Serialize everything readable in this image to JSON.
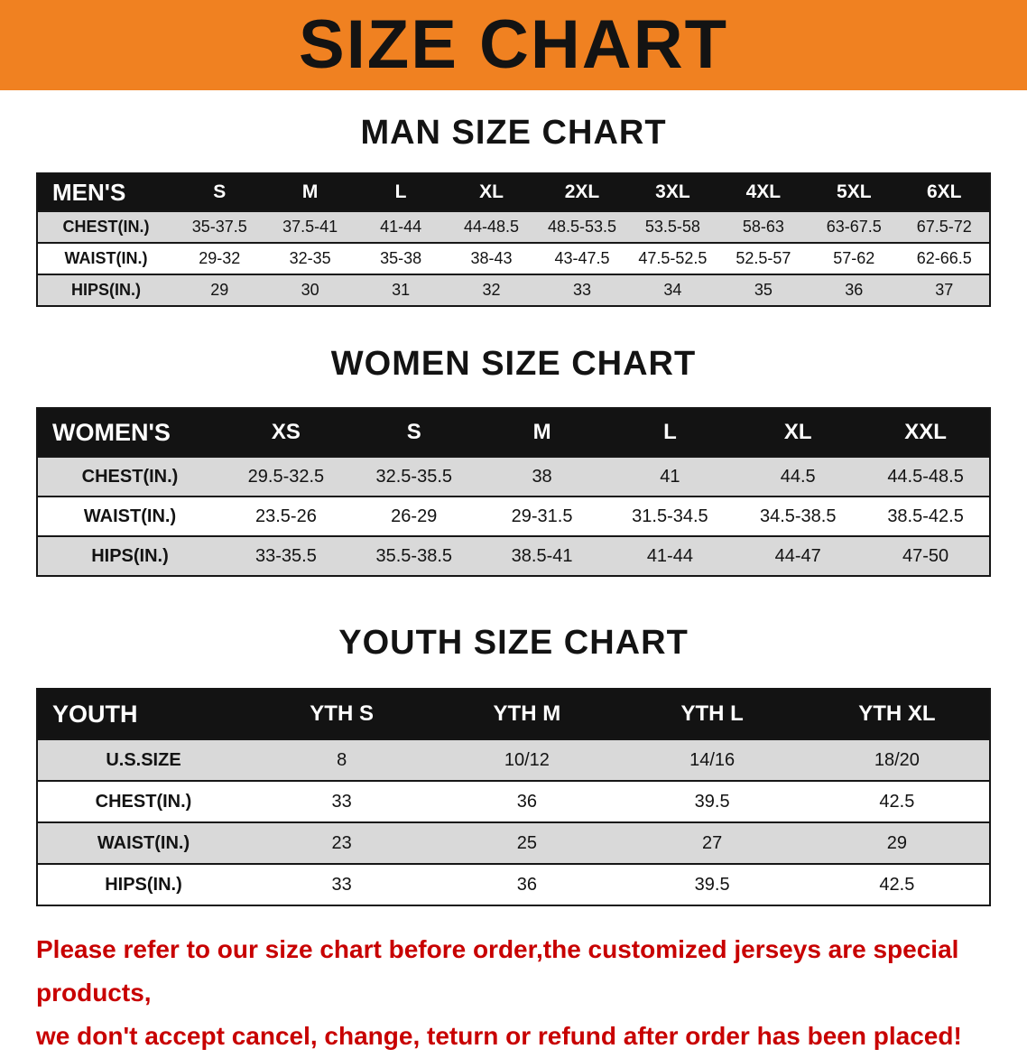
{
  "colors": {
    "banner_bg": "#F08121",
    "title_color": "#131313",
    "header_bg": "#131313",
    "header_text": "#FFFFFF",
    "row_alt_bg": "#D9D9D9",
    "disclaimer_color": "#C80000"
  },
  "banner": {
    "title": "SIZE CHART"
  },
  "sections": [
    {
      "heading": "MAN SIZE CHART",
      "table": {
        "header": [
          "MEN'S",
          "S",
          "M",
          "L",
          "XL",
          "2XL",
          "3XL",
          "4XL",
          "5XL",
          "6XL"
        ],
        "rows": [
          {
            "label": "CHEST(IN.)",
            "values": [
              "35-37.5",
              "37.5-41",
              "41-44",
              "44-48.5",
              "48.5-53.5",
              "53.5-58",
              "58-63",
              "63-67.5",
              "67.5-72"
            ]
          },
          {
            "label": "WAIST(IN.)",
            "values": [
              "29-32",
              "32-35",
              "35-38",
              "38-43",
              "43-47.5",
              "47.5-52.5",
              "52.5-57",
              "57-62",
              "62-66.5"
            ]
          },
          {
            "label": "HIPS(IN.)",
            "values": [
              "29",
              "30",
              "31",
              "32",
              "33",
              "34",
              "35",
              "36",
              "37"
            ]
          }
        ]
      }
    },
    {
      "heading": "WOMEN SIZE CHART",
      "table": {
        "header": [
          "WOMEN'S",
          "XS",
          "S",
          "M",
          "L",
          "XL",
          "XXL"
        ],
        "rows": [
          {
            "label": "CHEST(IN.)",
            "values": [
              "29.5-32.5",
              "32.5-35.5",
              "38",
              "41",
              "44.5",
              "44.5-48.5"
            ]
          },
          {
            "label": "WAIST(IN.)",
            "values": [
              "23.5-26",
              "26-29",
              "29-31.5",
              "31.5-34.5",
              "34.5-38.5",
              "38.5-42.5"
            ]
          },
          {
            "label": "HIPS(IN.)",
            "values": [
              "33-35.5",
              "35.5-38.5",
              "38.5-41",
              "41-44",
              "44-47",
              "47-50"
            ]
          }
        ]
      }
    },
    {
      "heading": "YOUTH SIZE CHART",
      "table": {
        "header": [
          "YOUTH",
          "YTH S",
          "YTH M",
          "YTH L",
          "YTH XL"
        ],
        "rows": [
          {
            "label": "U.S.SIZE",
            "values": [
              "8",
              "10/12",
              "14/16",
              "18/20"
            ]
          },
          {
            "label": "CHEST(IN.)",
            "values": [
              "33",
              "36",
              "39.5",
              "42.5"
            ]
          },
          {
            "label": "WAIST(IN.)",
            "values": [
              "23",
              "25",
              "27",
              "29"
            ]
          },
          {
            "label": "HIPS(IN.)",
            "values": [
              "33",
              "36",
              "39.5",
              "42.5"
            ]
          }
        ]
      }
    }
  ],
  "disclaimer": {
    "line1": "Please refer to our size chart before order,the customized jerseys are special products,",
    "line2": "we don't accept cancel, change, teturn or refund after order has been placed!"
  }
}
